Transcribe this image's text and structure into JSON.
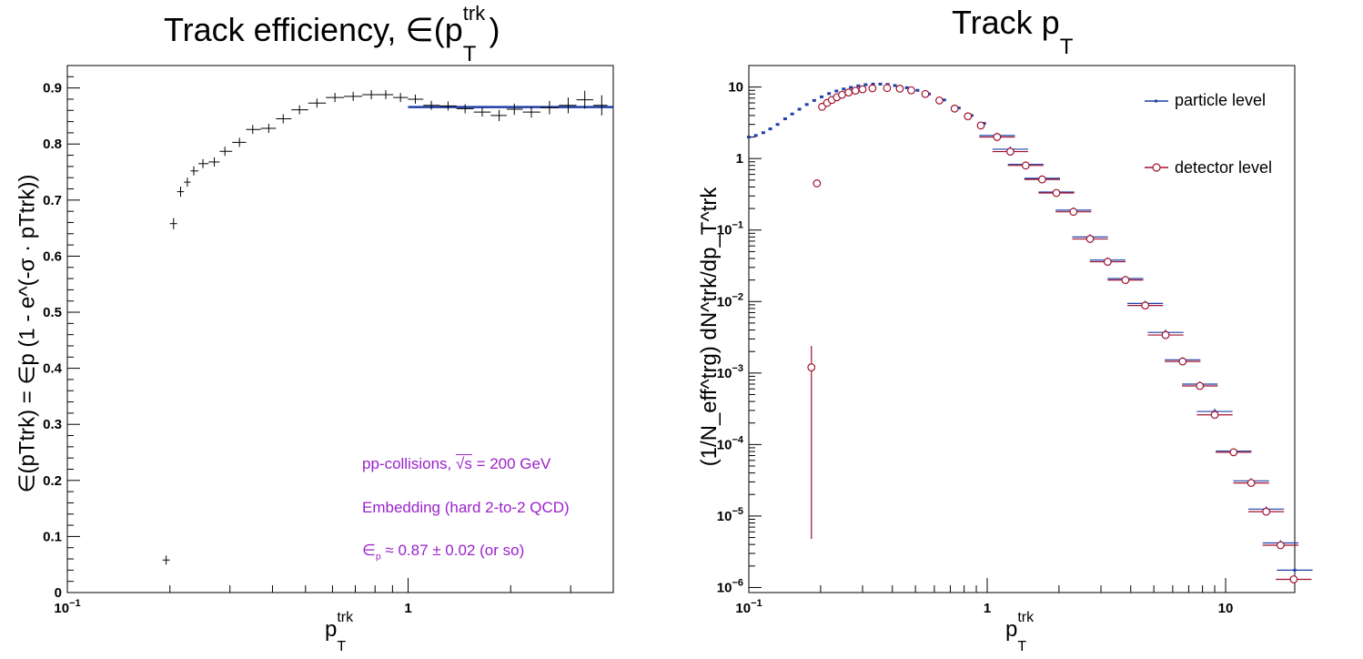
{
  "left_panel": {
    "title_main": "Track efficiency, ∈(p",
    "title_sup": "trk",
    "title_sub": "T",
    "title_close": ")",
    "xlabel_main": "p",
    "xlabel_sup": "trk",
    "xlabel_sub": "T",
    "ylabel": "∈(pTtrk) = ∈p (1 - e^(-σ · pTtrk))",
    "yticks": [
      "0",
      "0.1",
      "0.2",
      "0.3",
      "0.4",
      "0.5",
      "0.6",
      "0.7",
      "0.8",
      "0.9"
    ],
    "xticks": [
      {
        "v": 0.1,
        "base": "10",
        "exp": "−1"
      },
      {
        "v": 1,
        "base": "1",
        "exp": ""
      }
    ],
    "annotations": {
      "line1_a": "pp-collisions, ",
      "line1_sqrt": "√s",
      "line1_b": " = 200 GeV",
      "line2": "Embedding (hard 2-to-2 QCD)",
      "line3_a": "∈",
      "line3_sub": "p",
      "line3_b": " ≈ 0.87 ± 0.02 (or so)"
    }
  },
  "right_panel": {
    "title_main": "Track p",
    "title_sub": "T",
    "xlabel_main": "p",
    "xlabel_sup": "trk",
    "xlabel_sub": "T",
    "ylabel": "(1/N_eff^trg) dN^trk/dp_T^trk",
    "legend": {
      "particle": "particle level",
      "detector": "detector level"
    },
    "xticks": [
      {
        "v": 0.1,
        "base": "10",
        "exp": "−1"
      },
      {
        "v": 1,
        "base": "1",
        "exp": ""
      },
      {
        "v": 10,
        "base": "10",
        "exp": ""
      }
    ],
    "yticks": [
      {
        "v": 1e-06,
        "base": "10",
        "exp": "−6"
      },
      {
        "v": 1e-05,
        "base": "10",
        "exp": "−5"
      },
      {
        "v": 0.0001,
        "base": "10",
        "exp": "−4"
      },
      {
        "v": 0.001,
        "base": "10",
        "exp": "−3"
      },
      {
        "v": 0.01,
        "base": "10",
        "exp": "−2"
      },
      {
        "v": 0.1,
        "base": "10",
        "exp": "−1"
      },
      {
        "v": 1,
        "base": "1",
        "exp": ""
      },
      {
        "v": 10,
        "base": "10",
        "exp": ""
      }
    ]
  },
  "colors": {
    "particle": "#1f3fa6",
    "detector": "#a0102e",
    "fit": "#1f3fa6",
    "annotation": "#9a22cc",
    "axis": "#000000"
  },
  "chart_data": [
    {
      "type": "scatter",
      "title": "Track efficiency, ∈(pTtrk)",
      "xlabel": "pTtrk",
      "ylabel": "∈(pTtrk) = ∈p (1 - e^(-σ · pTtrk))",
      "xscale": "log",
      "xlim": [
        0.1,
        4.0
      ],
      "ylim": [
        0,
        0.94
      ],
      "series": [
        {
          "x": [
            0.195,
            0.205,
            0.215,
            0.225,
            0.235,
            0.25,
            0.27,
            0.29,
            0.32,
            0.35,
            0.39,
            0.43,
            0.48,
            0.54,
            0.61,
            0.69,
            0.78,
            0.86,
            0.95,
            1.05,
            1.17,
            1.31,
            1.47,
            1.65,
            1.85,
            2.05,
            2.3,
            2.6,
            2.95,
            3.3,
            3.7
          ],
          "y": [
            0.058,
            0.658,
            0.715,
            0.732,
            0.752,
            0.765,
            0.768,
            0.787,
            0.803,
            0.826,
            0.828,
            0.845,
            0.861,
            0.873,
            0.883,
            0.885,
            0.888,
            0.888,
            0.883,
            0.88,
            0.869,
            0.868,
            0.863,
            0.857,
            0.851,
            0.862,
            0.857,
            0.865,
            0.869,
            0.879,
            0.869
          ],
          "yerr": [
            0.002,
            0.01,
            0.009,
            0.008,
            0.007,
            0.006,
            0.006,
            0.005,
            0.004,
            0.004,
            0.004,
            0.003,
            0.003,
            0.003,
            0.003,
            0.003,
            0.003,
            0.003,
            0.004,
            0.004,
            0.005,
            0.006,
            0.007,
            0.008,
            0.01,
            0.01,
            0.01,
            0.012,
            0.014,
            0.016,
            0.018
          ]
        }
      ],
      "fit": {
        "x": [
          1.0,
          4.0
        ],
        "y": 0.866
      }
    },
    {
      "type": "scatter",
      "title": "Track pT",
      "xlabel": "pTtrk",
      "ylabel": "(1/N_eff^trg) dN^trk/dp_T^trk",
      "xscale": "log",
      "yscale": "log",
      "xlim": [
        0.1,
        19.5
      ],
      "ylim": [
        8.5e-07,
        20
      ],
      "legend": "top-right",
      "series": [
        {
          "name": "particle level",
          "x": [
            0.1,
            0.107,
            0.115,
            0.123,
            0.132,
            0.142,
            0.152,
            0.163,
            0.175,
            0.188,
            0.202,
            0.217,
            0.233,
            0.25,
            0.268,
            0.288,
            0.309,
            0.332,
            0.356,
            0.382,
            0.41,
            0.46,
            0.51,
            0.57,
            0.66,
            0.76,
            0.86,
            0.97,
            1.1,
            1.25,
            1.45,
            1.7,
            1.95,
            2.3,
            2.7,
            3.2,
            3.8,
            4.6,
            5.6,
            6.6,
            7.8,
            9.0,
            10.8,
            12.8,
            14.8,
            17.0,
            19.5
          ],
          "y": [
            2.0,
            2.1,
            2.3,
            2.6,
            3.0,
            3.6,
            4.2,
            4.9,
            5.7,
            6.5,
            7.3,
            8.1,
            8.8,
            9.4,
            9.9,
            10.4,
            10.8,
            11.0,
            11.0,
            10.9,
            10.5,
            9.8,
            9.0,
            8.0,
            6.6,
            5.1,
            4.0,
            3.1,
            2.1,
            1.35,
            0.83,
            0.53,
            0.34,
            0.19,
            0.08,
            0.038,
            0.021,
            0.0094,
            0.0037,
            0.00153,
            0.0007,
            0.00029,
            8.1e-05,
            3.1e-05,
            1.25e-05,
            4.2e-06,
            1.75e-06
          ]
        },
        {
          "name": "detector level",
          "x": [
            0.183,
            0.193,
            0.203,
            0.213,
            0.223,
            0.234,
            0.246,
            0.262,
            0.28,
            0.3,
            0.33,
            0.38,
            0.43,
            0.48,
            0.55,
            0.63,
            0.73,
            0.83,
            0.94,
            1.1,
            1.25,
            1.45,
            1.7,
            1.95,
            2.3,
            2.7,
            3.2,
            3.8,
            4.6,
            5.6,
            6.6,
            7.8,
            9.0,
            10.8,
            12.8,
            14.8,
            17.0,
            19.3
          ],
          "y": [
            0.0012,
            0.45,
            5.3,
            6.0,
            6.6,
            7.2,
            7.8,
            8.4,
            8.9,
            9.3,
            9.6,
            9.7,
            9.5,
            9.0,
            8.0,
            6.5,
            5.0,
            3.9,
            2.9,
            2.0,
            1.25,
            0.8,
            0.51,
            0.33,
            0.18,
            0.075,
            0.036,
            0.02,
            0.0088,
            0.0034,
            0.00145,
            0.00066,
            0.00026,
            7.8e-05,
            2.9e-05,
            1.15e-05,
            3.9e-06,
            1.3e-06
          ],
          "yerr": [
            0.0012,
            0.02,
            0.1,
            0.1,
            0.1,
            0.1,
            0.1,
            0.1,
            0.1,
            0.1,
            0.1,
            0.1,
            0.1,
            0.1,
            0.1,
            0.1,
            0.08,
            0.06,
            0.05,
            0.04,
            0.03,
            0.02,
            0.015,
            0.01,
            0.006,
            0.003,
            0.0015,
            0.0008,
            0.0004,
            0.0002,
            0.0001,
            4e-05,
            2e-05,
            6e-06,
            2.5e-06,
            1e-06,
            4e-07,
            1.5e-07
          ]
        }
      ]
    }
  ]
}
